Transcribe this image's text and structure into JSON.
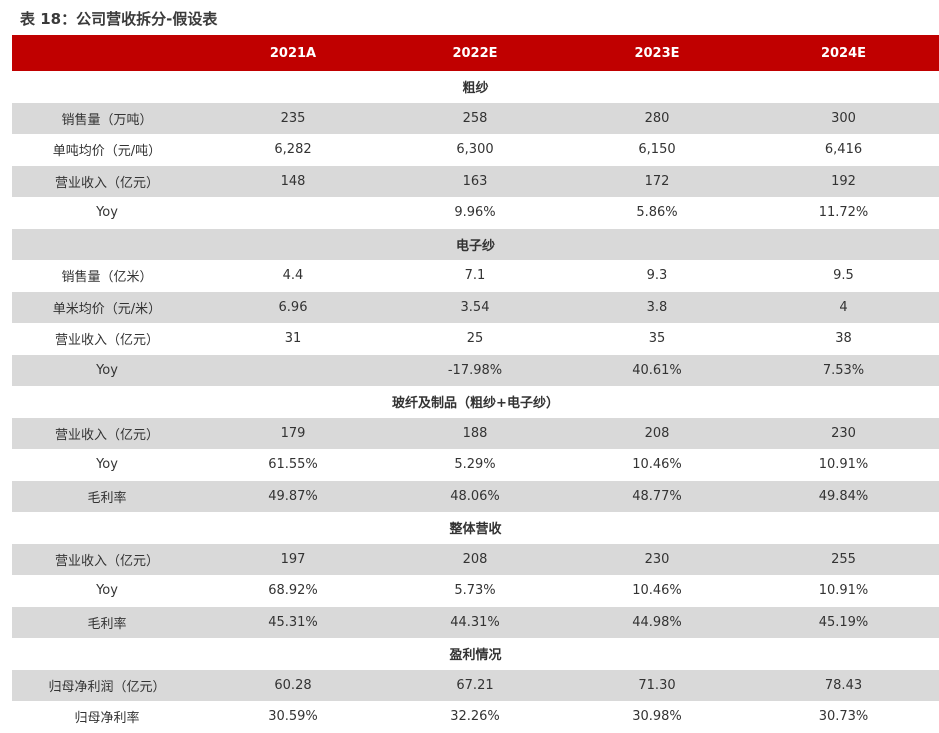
{
  "title": "表 18：公司营收拆分-假设表",
  "header": {
    "col0": "",
    "years": [
      "2021A",
      "2022E",
      "2023E",
      "2024E"
    ]
  },
  "sections": [
    {
      "name": "粗纱",
      "rows": [
        {
          "label": "销售量（万吨）",
          "values": [
            "235",
            "258",
            "280",
            "300"
          ]
        },
        {
          "label": "单吨均价（元/吨）",
          "values": [
            "6,282",
            "6,300",
            "6,150",
            "6,416"
          ]
        },
        {
          "label": "营业收入（亿元）",
          "values": [
            "148",
            "163",
            "172",
            "192"
          ]
        },
        {
          "label": "Yoy",
          "values": [
            "",
            "9.96%",
            "5.86%",
            "11.72%"
          ]
        }
      ]
    },
    {
      "name": "电子纱",
      "rows": [
        {
          "label": "销售量（亿米）",
          "values": [
            "4.4",
            "7.1",
            "9.3",
            "9.5"
          ]
        },
        {
          "label": "单米均价（元/米）",
          "values": [
            "6.96",
            "3.54",
            "3.8",
            "4"
          ]
        },
        {
          "label": "营业收入（亿元）",
          "values": [
            "31",
            "25",
            "35",
            "38"
          ]
        },
        {
          "label": "Yoy",
          "values": [
            "",
            "-17.98%",
            "40.61%",
            "7.53%"
          ]
        }
      ]
    },
    {
      "name": "玻纤及制品（粗纱+电子纱）",
      "rows": [
        {
          "label": "营业收入（亿元）",
          "values": [
            "179",
            "188",
            "208",
            "230"
          ]
        },
        {
          "label": "Yoy",
          "values": [
            "61.55%",
            "5.29%",
            "10.46%",
            "10.91%"
          ]
        },
        {
          "label": "毛利率",
          "values": [
            "49.87%",
            "48.06%",
            "48.77%",
            "49.84%"
          ]
        }
      ]
    },
    {
      "name": "整体营收",
      "rows": [
        {
          "label": "营业收入（亿元）",
          "values": [
            "197",
            "208",
            "230",
            "255"
          ]
        },
        {
          "label": "Yoy",
          "values": [
            "68.92%",
            "5.73%",
            "10.46%",
            "10.91%"
          ]
        },
        {
          "label": "毛利率",
          "values": [
            "45.31%",
            "44.31%",
            "44.98%",
            "45.19%"
          ]
        }
      ]
    },
    {
      "name": "盈利情况",
      "rows": [
        {
          "label": "归母净利润（亿元）",
          "values": [
            "60.28",
            "67.21",
            "71.30",
            "78.43"
          ]
        },
        {
          "label": "归母净利率",
          "values": [
            "30.59%",
            "32.26%",
            "30.98%",
            "30.73%"
          ]
        }
      ]
    }
  ],
  "colors": {
    "header_bg": "#c00000",
    "shade_bg": "#d9d9d9"
  }
}
